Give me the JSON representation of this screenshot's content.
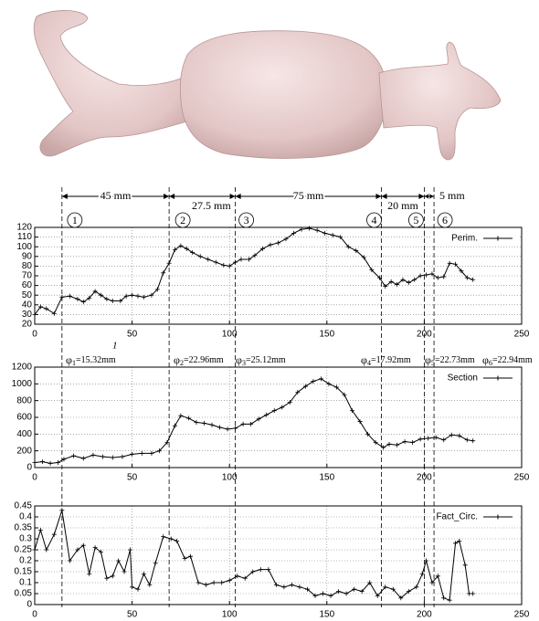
{
  "figure": {
    "section_x": [
      14,
      69,
      103,
      178,
      200,
      205
    ],
    "dimensions": [
      "45 mm",
      "27.5 mm",
      "75 mm",
      "20 mm",
      "5 mm"
    ],
    "markers": [
      "1",
      "2",
      "3",
      "4",
      "5",
      "6"
    ],
    "diameters": [
      {
        "symbol": "φ",
        "index": "1",
        "text": "=15.32mm"
      },
      {
        "symbol": "φ",
        "index": "2",
        "text": "=22.96mm"
      },
      {
        "symbol": "φ",
        "index": "3",
        "text": "=25.12mm"
      },
      {
        "symbol": "φ",
        "index": "4",
        "text": "=17.92mm"
      },
      {
        "symbol": "φ",
        "index": "5",
        "text": "=22.73mm"
      },
      {
        "symbol": "φ",
        "index": "6",
        "text": "=22.94mm"
      }
    ],
    "note": "1"
  },
  "chart_data": [
    {
      "type": "line",
      "grid": true,
      "legend": "top-right",
      "xlim": [
        0,
        250
      ],
      "xticks": [
        0,
        50,
        100,
        150,
        200,
        250
      ],
      "ylim": [
        20,
        120
      ],
      "yticks": [
        20,
        30,
        40,
        50,
        60,
        70,
        80,
        90,
        100,
        110,
        120
      ],
      "x": [
        0,
        3,
        6,
        10,
        14,
        18,
        22,
        25,
        28,
        31,
        34,
        37,
        40,
        44,
        47,
        50,
        53,
        56,
        60,
        63,
        66,
        69,
        72,
        75,
        78,
        81,
        85,
        89,
        93,
        97,
        100,
        103,
        106,
        110,
        113,
        117,
        121,
        125,
        129,
        133,
        137,
        141,
        145,
        149,
        153,
        157,
        161,
        165,
        169,
        173,
        177,
        180,
        183,
        186,
        189,
        192,
        195,
        198,
        201,
        204,
        207,
        210,
        213,
        216,
        219,
        222,
        225
      ],
      "series": [
        {
          "name": "Perim.",
          "color": "#000000",
          "values": [
            30,
            38,
            36,
            31,
            48,
            49,
            46,
            43,
            47,
            54,
            50,
            46,
            44,
            44,
            49,
            50,
            49,
            48,
            50,
            56,
            73,
            83,
            97,
            101,
            98,
            94,
            90,
            87,
            84,
            81,
            80,
            84,
            87,
            87,
            91,
            98,
            102,
            104,
            108,
            114,
            118,
            119,
            117,
            114,
            112,
            110,
            100,
            96,
            89,
            76,
            68,
            59,
            64,
            61,
            66,
            63,
            66,
            70,
            71,
            72,
            68,
            69,
            83,
            82,
            75,
            68,
            66
          ]
        }
      ]
    },
    {
      "type": "line",
      "grid": true,
      "legend": "top-right",
      "xlim": [
        0,
        250
      ],
      "xticks": [
        0,
        50,
        100,
        150,
        200,
        250
      ],
      "ylim": [
        0,
        1200
      ],
      "yticks": [
        0,
        200,
        400,
        600,
        800,
        1000,
        1200
      ],
      "x": [
        0,
        4,
        8,
        12,
        15,
        20,
        25,
        30,
        35,
        40,
        45,
        50,
        55,
        60,
        64,
        68,
        72,
        75,
        79,
        83,
        87,
        91,
        95,
        99,
        103,
        107,
        111,
        115,
        119,
        123,
        127,
        131,
        135,
        139,
        143,
        147,
        151,
        155,
        159,
        163,
        167,
        171,
        175,
        179,
        182,
        186,
        190,
        194,
        198,
        202,
        206,
        210,
        214,
        218,
        222,
        225
      ],
      "series": [
        {
          "name": "Section",
          "color": "#000000",
          "values": [
            60,
            70,
            50,
            60,
            100,
            140,
            110,
            150,
            130,
            120,
            130,
            160,
            170,
            170,
            200,
            300,
            500,
            620,
            590,
            540,
            530,
            510,
            480,
            460,
            470,
            520,
            520,
            580,
            630,
            680,
            720,
            780,
            900,
            970,
            1030,
            1060,
            1000,
            960,
            870,
            680,
            550,
            400,
            300,
            240,
            280,
            270,
            310,
            300,
            340,
            350,
            360,
            330,
            390,
            380,
            330,
            320
          ]
        }
      ]
    },
    {
      "type": "line",
      "grid": true,
      "legend": "top-right",
      "xlim": [
        0,
        250
      ],
      "xticks": [
        0,
        50,
        100,
        150,
        200,
        250
      ],
      "ylim": [
        0,
        0.45
      ],
      "yticks": [
        0,
        0.05,
        0.1,
        0.15,
        0.2,
        0.25,
        0.3,
        0.35,
        0.4,
        0.45
      ],
      "x": [
        0,
        3,
        6,
        10,
        14,
        18,
        22,
        25,
        28,
        31,
        34,
        37,
        40,
        43,
        46,
        49,
        50,
        53,
        56,
        59,
        62,
        66,
        70,
        73,
        77,
        80,
        84,
        88,
        92,
        96,
        100,
        104,
        108,
        112,
        116,
        120,
        124,
        128,
        132,
        136,
        140,
        144,
        148,
        152,
        156,
        160,
        164,
        168,
        172,
        176,
        180,
        184,
        188,
        192,
        196,
        199,
        201,
        204,
        207,
        210,
        213,
        216,
        218,
        221,
        223,
        225
      ],
      "series": [
        {
          "name": "Fact_Circ.",
          "color": "#000000",
          "values": [
            0.25,
            0.34,
            0.25,
            0.32,
            0.43,
            0.2,
            0.25,
            0.27,
            0.14,
            0.26,
            0.24,
            0.12,
            0.13,
            0.2,
            0.15,
            0.25,
            0.08,
            0.07,
            0.14,
            0.09,
            0.19,
            0.31,
            0.3,
            0.29,
            0.21,
            0.22,
            0.1,
            0.09,
            0.1,
            0.1,
            0.11,
            0.13,
            0.12,
            0.15,
            0.16,
            0.16,
            0.09,
            0.08,
            0.09,
            0.08,
            0.07,
            0.04,
            0.05,
            0.04,
            0.06,
            0.05,
            0.07,
            0.06,
            0.1,
            0.04,
            0.08,
            0.07,
            0.03,
            0.06,
            0.08,
            0.14,
            0.2,
            0.1,
            0.13,
            0.03,
            0.02,
            0.28,
            0.29,
            0.18,
            0.05,
            0.05
          ]
        }
      ]
    }
  ]
}
